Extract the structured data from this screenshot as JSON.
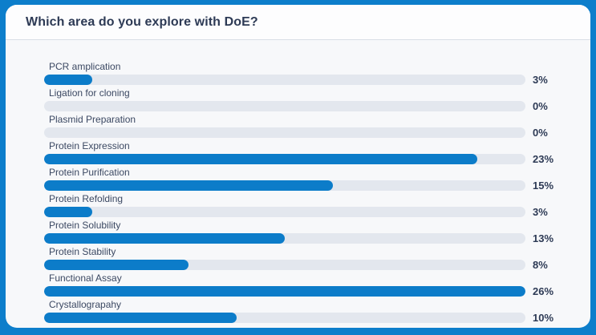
{
  "colors": {
    "frame_blue": "#0d7ecb",
    "bar_fill": "#0c7cc9",
    "bar_track": "#e3e7ee",
    "card_bg": "#f7f8fa",
    "header_bg": "#fdfdfe",
    "divider": "#d9dee6",
    "title_text": "#2d3a55",
    "label_text": "#3b4862",
    "value_text": "#2d3a55"
  },
  "chart_data": {
    "type": "bar",
    "orientation": "horizontal",
    "title": "Which area do you explore with DoE?",
    "categories": [
      "PCR amplication",
      "Ligation for cloning",
      "Plasmid Preparation",
      "Protein Expression",
      "Protein Purification",
      "Protein Refolding",
      "Protein Solubility",
      "Protein Stability",
      "Functional Assay",
      "Crystallograpahy"
    ],
    "values": [
      3,
      0,
      0,
      23,
      15,
      3,
      13,
      8,
      26,
      10
    ],
    "value_labels": [
      "3%",
      "0%",
      "0%",
      "23%",
      "15%",
      "3%",
      "13%",
      "8%",
      "26%",
      "10%"
    ],
    "value_suffix": "%",
    "xlim": [
      0,
      26
    ],
    "fill_percents_of_track": [
      10,
      0,
      0,
      90,
      60,
      10,
      50,
      30,
      100,
      40
    ],
    "grid": false,
    "legend": "none",
    "value_label_position": "right-of-track"
  }
}
